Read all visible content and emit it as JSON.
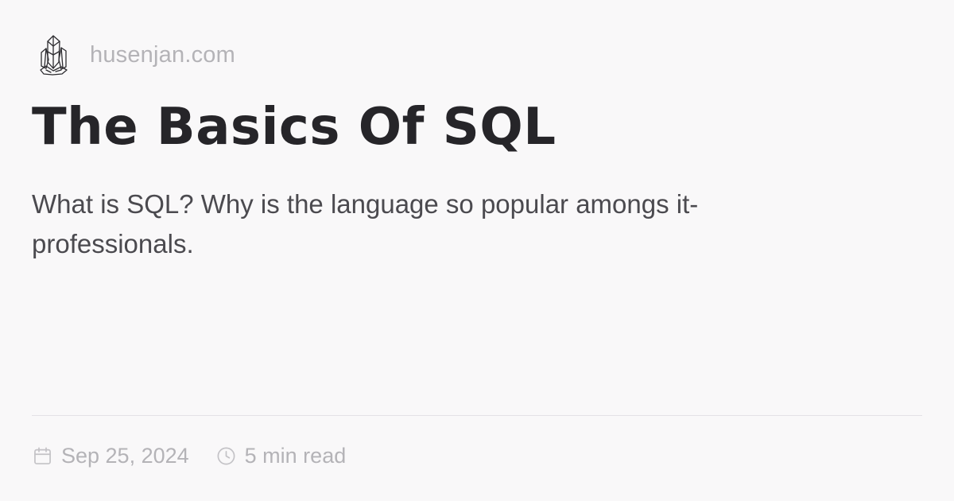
{
  "site": {
    "logo_icon": "crystal-icon",
    "name": "husenjan.com"
  },
  "post": {
    "title": "The Basics Of SQL",
    "description": "What is SQL? Why is the language so popular amongs it-professionals."
  },
  "meta": {
    "date_icon": "calendar-icon",
    "date": "Sep 25, 2024",
    "reading_time_icon": "clock-icon",
    "reading_time": "5 min read"
  },
  "colors": {
    "background": "#f9f8f9",
    "title": "#262529",
    "description": "#4b4a4f",
    "muted": "#b4b3b7",
    "divider": "#e4e2e6"
  }
}
